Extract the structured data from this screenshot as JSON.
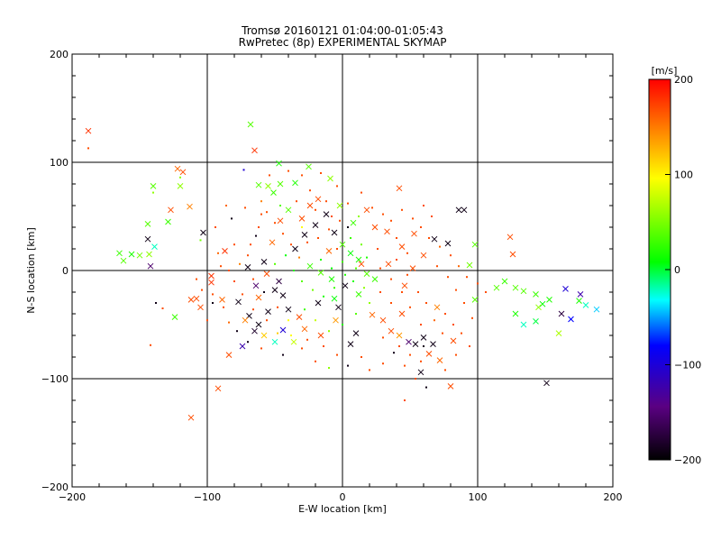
{
  "chart_data": {
    "type": "scatter",
    "title": "Tromsø 20160121 01:04:00-01:05:43",
    "subtitle": "RwPretec (8p) EXPERIMENTAL SKYMAP",
    "xlabel": "E-W location [km]",
    "ylabel": "N-S location [km]",
    "xlim": [
      -200,
      200
    ],
    "ylim": [
      -200,
      200
    ],
    "xticks": [
      -200,
      -100,
      0,
      100,
      200
    ],
    "yticks": [
      -200,
      -100,
      0,
      100,
      200
    ],
    "grid": true,
    "colorbar": {
      "label": "[m/s]",
      "range": [
        -200,
        200
      ],
      "ticks": [
        200,
        100,
        0,
        -100,
        -200
      ],
      "colormap": "rainbow",
      "stops": [
        "#000000",
        "#5a0082",
        "#0000ff",
        "#00ffff",
        "#00ff00",
        "#ffff00",
        "#ff0000"
      ]
    },
    "marker_legend": {
      "x": "cross marker",
      "dot": "small dot marker"
    },
    "points_x_marker": [
      [
        -188,
        129,
        180
      ],
      [
        -68,
        135,
        40
      ],
      [
        -65,
        111,
        180
      ],
      [
        -47,
        99,
        20
      ],
      [
        -122,
        94,
        160
      ],
      [
        -118,
        91,
        170
      ],
      [
        -120,
        78,
        60
      ],
      [
        -140,
        78,
        40
      ],
      [
        -113,
        59,
        150
      ],
      [
        -127,
        56,
        170
      ],
      [
        -129,
        45,
        30
      ],
      [
        -144,
        43,
        40
      ],
      [
        -165,
        16,
        30
      ],
      [
        -156,
        15,
        20
      ],
      [
        -150,
        14,
        50
      ],
      [
        -143,
        15,
        60
      ],
      [
        -162,
        9,
        40
      ],
      [
        -139,
        22,
        -20
      ],
      [
        -144,
        29,
        -190
      ],
      [
        -142,
        4,
        -150
      ],
      [
        -103,
        35,
        -190
      ],
      [
        -87,
        18,
        180
      ],
      [
        -97,
        -5,
        180
      ],
      [
        -108,
        -26,
        170
      ],
      [
        -112,
        -27,
        170
      ],
      [
        -105,
        -34,
        170
      ],
      [
        -97,
        -11,
        180
      ],
      [
        -89,
        -27,
        160
      ],
      [
        -62,
        79,
        40
      ],
      [
        -55,
        78,
        60
      ],
      [
        -46,
        80,
        40
      ],
      [
        -51,
        72,
        30
      ],
      [
        -35,
        81,
        20
      ],
      [
        -25,
        96,
        40
      ],
      [
        -9,
        85,
        60
      ],
      [
        -77,
        -29,
        -190
      ],
      [
        -69,
        -42,
        -190
      ],
      [
        -62,
        -50,
        -190
      ],
      [
        -55,
        -38,
        -190
      ],
      [
        -65,
        -56,
        -180
      ],
      [
        -74,
        -70,
        -120
      ],
      [
        -84,
        -78,
        170
      ],
      [
        -92,
        -109,
        170
      ],
      [
        -112,
        -136,
        170
      ],
      [
        -124,
        -43,
        30
      ],
      [
        42,
        76,
        170
      ],
      [
        18,
        56,
        170
      ],
      [
        24,
        40,
        170
      ],
      [
        33,
        36,
        170
      ],
      [
        53,
        34,
        170
      ],
      [
        68,
        29,
        -190
      ],
      [
        78,
        25,
        -190
      ],
      [
        86,
        56,
        -190
      ],
      [
        90,
        56,
        -190
      ],
      [
        98,
        24,
        40
      ],
      [
        124,
        31,
        170
      ],
      [
        126,
        15,
        170
      ],
      [
        94,
        5,
        50
      ],
      [
        98,
        -27,
        40
      ],
      [
        114,
        -16,
        40
      ],
      [
        120,
        -10,
        30
      ],
      [
        128,
        -16,
        40
      ],
      [
        134,
        -19,
        40
      ],
      [
        143,
        -22,
        30
      ],
      [
        148,
        -31,
        10
      ],
      [
        143,
        -47,
        0
      ],
      [
        134,
        -50,
        -20
      ],
      [
        128,
        -40,
        20
      ],
      [
        145,
        -34,
        60
      ],
      [
        153,
        -27,
        20
      ],
      [
        165,
        -17,
        -100
      ],
      [
        175,
        -28,
        20
      ],
      [
        180,
        -32,
        -20
      ],
      [
        188,
        -36,
        -40
      ],
      [
        162,
        -40,
        -170
      ],
      [
        169,
        -45,
        -80
      ],
      [
        176,
        -22,
        -120
      ],
      [
        160,
        -58,
        70
      ],
      [
        151,
        -104,
        -190
      ],
      [
        67,
        -68,
        -190
      ],
      [
        60,
        -62,
        -190
      ],
      [
        54,
        -68,
        -190
      ],
      [
        49,
        -66,
        -150
      ],
      [
        42,
        -60,
        140
      ],
      [
        36,
        -56,
        170
      ],
      [
        30,
        -46,
        170
      ],
      [
        22,
        -41,
        160
      ],
      [
        64,
        -77,
        170
      ],
      [
        72,
        -83,
        160
      ],
      [
        82,
        -65,
        170
      ],
      [
        80,
        -107,
        170
      ],
      [
        58,
        -94,
        -190
      ],
      [
        6,
        -68,
        -190
      ],
      [
        10,
        -58,
        -190
      ],
      [
        -3,
        -34,
        -190
      ],
      [
        -5,
        -46,
        140
      ],
      [
        -16,
        -60,
        170
      ],
      [
        -28,
        -54,
        160
      ],
      [
        -32,
        -43,
        170
      ],
      [
        -18,
        -30,
        -190
      ],
      [
        -40,
        -36,
        -190
      ],
      [
        -44,
        -23,
        -190
      ],
      [
        -50,
        -18,
        -190
      ],
      [
        -47,
        -10,
        -170
      ],
      [
        -56,
        -3,
        170
      ],
      [
        -62,
        -25,
        160
      ],
      [
        -70,
        3,
        -190
      ],
      [
        -35,
        20,
        -190
      ],
      [
        -28,
        33,
        -190
      ],
      [
        -20,
        42,
        -190
      ],
      [
        -12,
        52,
        -190
      ],
      [
        -6,
        35,
        -190
      ],
      [
        0,
        24,
        40
      ],
      [
        6,
        16,
        10
      ],
      [
        12,
        10,
        20
      ],
      [
        -8,
        -8,
        20
      ],
      [
        -16,
        -2,
        40
      ],
      [
        -24,
        4,
        30
      ],
      [
        2,
        -14,
        -190
      ],
      [
        14,
        6,
        170
      ],
      [
        18,
        -3,
        40
      ],
      [
        -10,
        18,
        160
      ],
      [
        -24,
        60,
        170
      ],
      [
        -30,
        48,
        170
      ],
      [
        -18,
        66,
        170
      ],
      [
        -2,
        60,
        60
      ],
      [
        8,
        44,
        30
      ],
      [
        -40,
        56,
        40
      ],
      [
        -46,
        46,
        170
      ],
      [
        -52,
        26,
        160
      ],
      [
        -58,
        8,
        -190
      ],
      [
        -64,
        -14,
        -150
      ],
      [
        -72,
        -46,
        150
      ],
      [
        -58,
        -60,
        120
      ],
      [
        -50,
        -66,
        -20
      ],
      [
        -44,
        -55,
        -100
      ],
      [
        -36,
        -66,
        80
      ],
      [
        -6,
        -26,
        10
      ],
      [
        12,
        -22,
        30
      ],
      [
        24,
        -8,
        30
      ],
      [
        34,
        6,
        170
      ],
      [
        46,
        -14,
        170
      ],
      [
        52,
        2,
        170
      ],
      [
        60,
        14,
        170
      ],
      [
        44,
        22,
        170
      ],
      [
        70,
        -34,
        150
      ],
      [
        44,
        -40,
        170
      ]
    ],
    "points_dot_marker": [
      [
        -188,
        113,
        170
      ],
      [
        -73,
        93,
        -100
      ],
      [
        -120,
        86,
        60
      ],
      [
        -140,
        72,
        60
      ],
      [
        -105,
        28,
        50
      ],
      [
        -68,
        24,
        170
      ],
      [
        -80,
        24,
        170
      ],
      [
        -72,
        58,
        170
      ],
      [
        -82,
        48,
        -190
      ],
      [
        -60,
        52,
        170
      ],
      [
        -64,
        32,
        -190
      ],
      [
        -46,
        60,
        40
      ],
      [
        -70,
        14,
        170
      ],
      [
        -76,
        6,
        150
      ],
      [
        -66,
        -8,
        170
      ],
      [
        -58,
        -20,
        -190
      ],
      [
        -74,
        -22,
        170
      ],
      [
        -88,
        -34,
        170
      ],
      [
        -84,
        -48,
        160
      ],
      [
        -78,
        -56,
        -190
      ],
      [
        -70,
        -66,
        -190
      ],
      [
        -60,
        -72,
        170
      ],
      [
        -44,
        -78,
        -190
      ],
      [
        -30,
        -72,
        170
      ],
      [
        -20,
        -84,
        170
      ],
      [
        -10,
        -90,
        60
      ],
      [
        -4,
        -78,
        170
      ],
      [
        4,
        -88,
        -190
      ],
      [
        14,
        -80,
        170
      ],
      [
        20,
        -92,
        170
      ],
      [
        30,
        -86,
        170
      ],
      [
        38,
        -76,
        -190
      ],
      [
        46,
        -88,
        170
      ],
      [
        54,
        -100,
        170
      ],
      [
        62,
        -108,
        -190
      ],
      [
        -142,
        -69,
        170
      ],
      [
        -138,
        -30,
        -190
      ],
      [
        -133,
        -35,
        170
      ],
      [
        -100,
        -46,
        170
      ],
      [
        -96,
        -22,
        170
      ],
      [
        -108,
        -8,
        170
      ],
      [
        -90,
        4,
        170
      ],
      [
        -92,
        16,
        160
      ],
      [
        -94,
        40,
        170
      ],
      [
        -86,
        60,
        160
      ],
      [
        -54,
        88,
        170
      ],
      [
        -40,
        92,
        170
      ],
      [
        -30,
        88,
        170
      ],
      [
        -16,
        90,
        170
      ],
      [
        -4,
        78,
        170
      ],
      [
        4,
        62,
        170
      ],
      [
        14,
        72,
        170
      ],
      [
        22,
        58,
        170
      ],
      [
        30,
        52,
        170
      ],
      [
        36,
        46,
        170
      ],
      [
        44,
        56,
        170
      ],
      [
        52,
        48,
        170
      ],
      [
        58,
        40,
        170
      ],
      [
        64,
        30,
        170
      ],
      [
        72,
        22,
        160
      ],
      [
        80,
        14,
        170
      ],
      [
        86,
        4,
        160
      ],
      [
        92,
        -6,
        170
      ],
      [
        100,
        -12,
        170
      ],
      [
        106,
        -20,
        170
      ],
      [
        76,
        -40,
        170
      ],
      [
        82,
        -50,
        170
      ],
      [
        88,
        -58,
        170
      ],
      [
        94,
        -70,
        170
      ],
      [
        84,
        -78,
        170
      ],
      [
        76,
        -92,
        170
      ],
      [
        -50,
        6,
        40
      ],
      [
        -42,
        14,
        10
      ],
      [
        -36,
        0,
        20
      ],
      [
        -30,
        -10,
        40
      ],
      [
        -22,
        -18,
        50
      ],
      [
        -14,
        -24,
        20
      ],
      [
        -6,
        -16,
        30
      ],
      [
        2,
        -4,
        20
      ],
      [
        10,
        2,
        40
      ],
      [
        18,
        12,
        20
      ],
      [
        26,
        20,
        170
      ],
      [
        -26,
        26,
        170
      ],
      [
        -18,
        30,
        170
      ],
      [
        -10,
        38,
        170
      ],
      [
        -2,
        46,
        170
      ],
      [
        6,
        30,
        30
      ],
      [
        14,
        24,
        50
      ],
      [
        -32,
        12,
        150
      ],
      [
        -38,
        24,
        170
      ],
      [
        -44,
        34,
        170
      ],
      [
        -50,
        44,
        170
      ],
      [
        -56,
        54,
        170
      ],
      [
        -60,
        64,
        150
      ],
      [
        40,
        10,
        170
      ],
      [
        48,
        -4,
        170
      ],
      [
        56,
        -20,
        170
      ],
      [
        62,
        -30,
        170
      ],
      [
        68,
        -46,
        160
      ],
      [
        74,
        -58,
        170
      ],
      [
        36,
        -30,
        170
      ],
      [
        28,
        -20,
        170
      ],
      [
        20,
        -30,
        60
      ],
      [
        10,
        -40,
        40
      ],
      [
        0,
        -50,
        20
      ],
      [
        -10,
        -56,
        60
      ],
      [
        -20,
        -46,
        80
      ],
      [
        -28,
        -36,
        30
      ],
      [
        -40,
        -46,
        100
      ],
      [
        -48,
        -34,
        170
      ],
      [
        -16,
        10,
        20
      ],
      [
        -8,
        2,
        10
      ],
      [
        0,
        8,
        30
      ],
      [
        8,
        -10,
        20
      ],
      [
        16,
        -16,
        60
      ],
      [
        -4,
        20,
        170
      ],
      [
        4,
        40,
        -190
      ],
      [
        -12,
        64,
        170
      ],
      [
        -24,
        74,
        170
      ],
      [
        -34,
        64,
        170
      ],
      [
        30,
        -62,
        170
      ],
      [
        42,
        -70,
        170
      ],
      [
        50,
        -78,
        170
      ],
      [
        58,
        -84,
        170
      ],
      [
        -66,
        -36,
        170
      ],
      [
        -56,
        -46,
        170
      ],
      [
        -48,
        -58,
        120
      ],
      [
        -38,
        -60,
        100
      ],
      [
        -26,
        -64,
        170
      ],
      [
        -14,
        -70,
        170
      ],
      [
        28,
        2,
        170
      ],
      [
        36,
        -8,
        170
      ],
      [
        44,
        -20,
        170
      ],
      [
        50,
        -34,
        170
      ],
      [
        58,
        -50,
        170
      ],
      [
        70,
        4,
        170
      ],
      [
        78,
        -6,
        170
      ],
      [
        84,
        -18,
        170
      ],
      [
        90,
        -30,
        170
      ],
      [
        96,
        -44,
        170
      ],
      [
        -96,
        -30,
        -190
      ],
      [
        -104,
        -18,
        170
      ],
      [
        -80,
        -10,
        170
      ],
      [
        -84,
        0,
        170
      ],
      [
        -62,
        40,
        170
      ],
      [
        60,
        60,
        170
      ],
      [
        66,
        50,
        170
      ],
      [
        40,
        30,
        170
      ],
      [
        48,
        16,
        170
      ],
      [
        12,
        50,
        60
      ],
      [
        -8,
        50,
        170
      ],
      [
        -20,
        56,
        170
      ],
      [
        -30,
        40,
        100
      ],
      [
        46,
        -120,
        170
      ],
      [
        60,
        -70,
        -190
      ]
    ]
  }
}
